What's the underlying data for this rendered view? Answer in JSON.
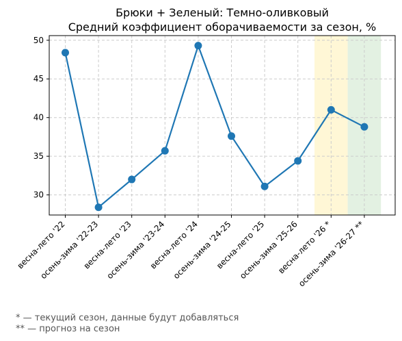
{
  "chart_data": {
    "type": "line",
    "title": "Брюки + Зеленый: Темно-оливковый",
    "subtitle": "Средний коэффициент оборачиваемости за сезон, %",
    "categories": [
      "весна-лето '22",
      "осень-зима '22-23",
      "весна-лето '23",
      "осень-зима '23-24",
      "весна-лето '24",
      "осень-зима '24-25",
      "весна-лето '25",
      "осень-зима '25-26",
      "весна-лето '26 *",
      "осень-зима '26-27 **"
    ],
    "series": [
      {
        "values": [
          48.4,
          28.4,
          32.0,
          35.7,
          49.3,
          37.6,
          31.1,
          34.4,
          41.0,
          38.8
        ]
      }
    ],
    "ylim": [
      27.4,
      50.6
    ],
    "yticks": [
      30,
      35,
      40,
      45,
      50
    ],
    "grid": true,
    "highlights": [
      {
        "category_index": 8,
        "color": "#fff7d6"
      },
      {
        "category_index": 9,
        "color": "#e3f1e2"
      }
    ],
    "line_color": "#1f77b4"
  },
  "footnotes": [
    "* — текущий сезон, данные будут добавляться",
    "** — прогноз на сезон"
  ]
}
